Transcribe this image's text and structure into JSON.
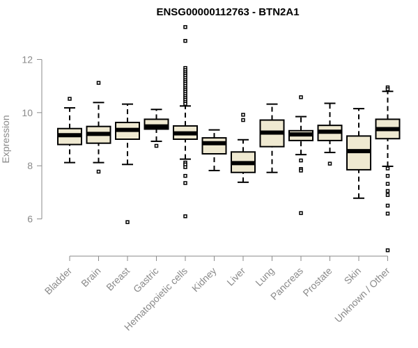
{
  "chart_data": {
    "type": "boxplot",
    "title": "ENSG00000112763 - BTN2A1",
    "xlabel": "",
    "ylabel": "Expression",
    "ylim": [
      4.6,
      13.4
    ],
    "yticks": [
      6,
      8,
      10,
      12
    ],
    "grid": false,
    "colors": {
      "box_fill": "#efe9d1",
      "stroke": "#000000",
      "axis": "#8a8a8a"
    },
    "categories": [
      "Bladder",
      "Brain",
      "Breast",
      "Gastric",
      "Hematopoietic cells",
      "Kidney",
      "Liver",
      "Lung",
      "Pancreas",
      "Prostate",
      "Skin",
      "Unknown / Other"
    ],
    "boxes": [
      {
        "min": 8.12,
        "q1": 8.8,
        "median": 9.15,
        "q3": 9.4,
        "max": 10.18,
        "outliers": [
          10.52
        ]
      },
      {
        "min": 8.12,
        "q1": 8.85,
        "median": 9.2,
        "q3": 9.48,
        "max": 10.38,
        "outliers": [
          7.78,
          11.12
        ]
      },
      {
        "min": 8.05,
        "q1": 9.0,
        "median": 9.35,
        "q3": 9.63,
        "max": 10.32,
        "outliers": [
          5.88
        ]
      },
      {
        "min": 8.92,
        "q1": 9.38,
        "median": 9.48,
        "q3": 9.75,
        "max": 10.12,
        "outliers": [
          8.75
        ]
      },
      {
        "min": 8.25,
        "q1": 9.0,
        "median": 9.22,
        "q3": 9.5,
        "max": 10.25,
        "outliers": [
          13.22,
          12.7,
          11.68,
          11.6,
          11.52,
          11.45,
          11.38,
          11.3,
          11.22,
          11.15,
          11.08,
          11.0,
          10.92,
          10.85,
          10.78,
          10.7,
          10.62,
          10.55,
          10.48,
          10.4,
          10.33,
          8.12,
          8.05,
          7.95,
          7.62,
          7.35,
          6.1
        ]
      },
      {
        "min": 7.82,
        "q1": 8.45,
        "median": 8.85,
        "q3": 9.05,
        "max": 9.35,
        "outliers": []
      },
      {
        "min": 7.38,
        "q1": 7.75,
        "median": 8.1,
        "q3": 8.52,
        "max": 8.98,
        "outliers": [
          9.72,
          9.92
        ]
      },
      {
        "min": 7.75,
        "q1": 8.72,
        "median": 9.25,
        "q3": 9.72,
        "max": 10.32,
        "outliers": []
      },
      {
        "min": 8.42,
        "q1": 8.95,
        "median": 9.18,
        "q3": 9.32,
        "max": 9.85,
        "outliers": [
          10.58,
          8.2,
          7.88,
          7.82,
          6.22
        ]
      },
      {
        "min": 8.5,
        "q1": 8.95,
        "median": 9.28,
        "q3": 9.52,
        "max": 10.35,
        "outliers": [
          8.08
        ]
      },
      {
        "min": 6.78,
        "q1": 7.85,
        "median": 8.55,
        "q3": 9.12,
        "max": 10.15,
        "outliers": []
      },
      {
        "min": 7.98,
        "q1": 9.02,
        "median": 9.38,
        "q3": 9.75,
        "max": 10.8,
        "outliers": [
          10.95,
          10.88,
          7.9,
          7.62,
          7.32,
          7.05,
          6.9,
          6.5,
          6.2,
          4.82
        ]
      }
    ]
  }
}
